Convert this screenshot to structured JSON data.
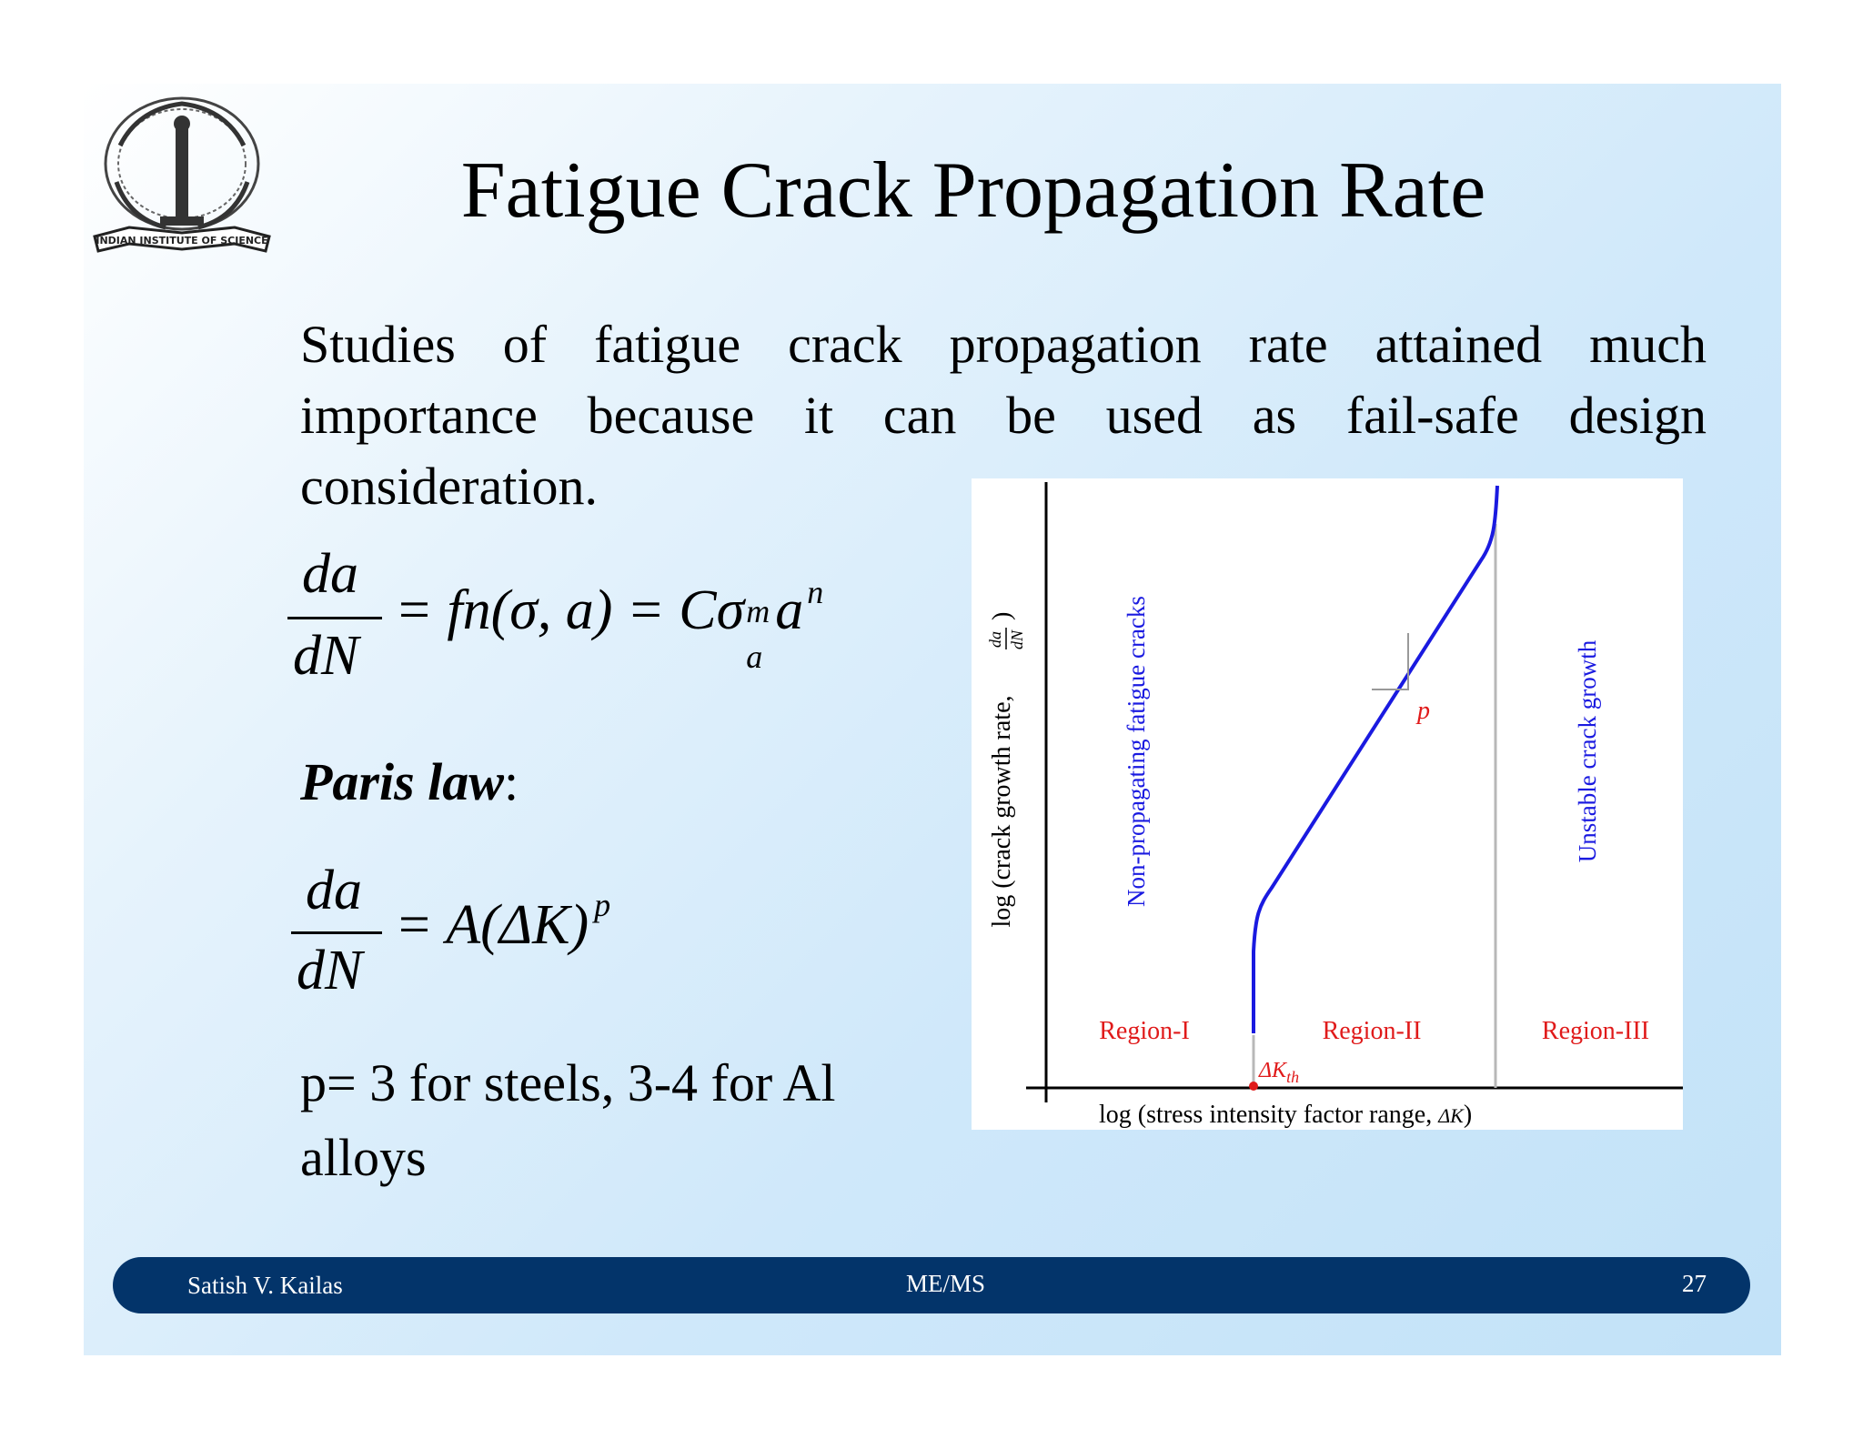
{
  "slide": {
    "title": "Fatigue Crack Propagation Rate",
    "logo": {
      "name": "Indian Institute of Science emblem",
      "text": "INDIAN INSTITUTE OF SCIENCE"
    },
    "paragraph_lines": [
      [
        "Studies",
        "of",
        "fatigue",
        "crack",
        "propagation",
        "rate",
        "attained",
        "much"
      ],
      [
        "importance",
        "because",
        "it",
        "can",
        "be",
        "used",
        "as",
        "fail-safe",
        "design"
      ]
    ],
    "paragraph_last": "consideration.",
    "equation1": {
      "numerator": "da",
      "denominator": "dN",
      "rhs_main": "= fn(σ, a) = Cσ",
      "sup_m": "m",
      "sub_a": "a",
      "a_term": "a",
      "sup_n": "n"
    },
    "paris_label": "Paris law",
    "paris_colon": ":",
    "equation2": {
      "numerator": "da",
      "denominator": "dN",
      "rhs": "= A(ΔK)",
      "sup_p": "p"
    },
    "p_note": "p= 3 for steels, 3-4 for Al alloys",
    "chart": {
      "ylabel": "log (crack growth rate, ",
      "ylabel_frac_num": "da",
      "ylabel_frac_den": "dN",
      "ylabel_close": ")",
      "xlabel": "log (stress intensity factor range, ",
      "xlabel_sym": "ΔK",
      "xlabel_close": ")",
      "region1": "Region-I",
      "region2": "Region-II",
      "region3": "Region-III",
      "text_nonprop": "Non-propagating fatigue cracks",
      "text_unstable": "Unstable crack growth",
      "slope_label": "p",
      "threshold_label": "ΔK",
      "threshold_sub": "th",
      "colors": {
        "curve": "#1a1ae0",
        "region": "#e01a1a",
        "divider": "#b8b8b8"
      }
    },
    "footer": {
      "author": "Satish V. Kailas",
      "dept": "ME/MS",
      "page": "27",
      "color": "#03346a"
    }
  }
}
